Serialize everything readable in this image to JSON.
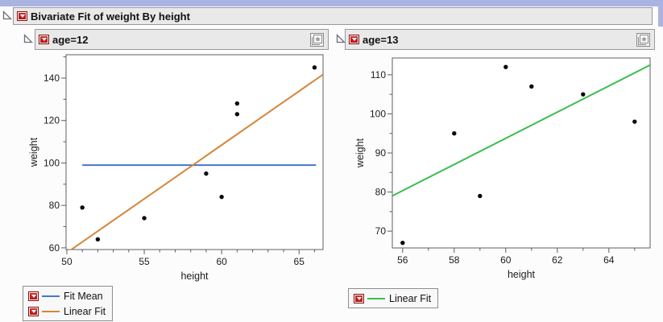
{
  "report": {
    "title": "Bivariate Fit of weight By height"
  },
  "panels": [
    {
      "title": "age=12",
      "legend": [
        {
          "label": "Fit Mean",
          "color": "#4575d0"
        },
        {
          "label": "Linear Fit",
          "color": "#d3863a"
        }
      ]
    },
    {
      "title": "age=13",
      "legend": [
        {
          "label": "Linear Fit",
          "color": "#3cbe4e"
        }
      ]
    }
  ],
  "icons": {
    "disclosure": "open-disclosure-triangle",
    "menu": "red-triangle-menu",
    "pin": "star-pin"
  },
  "colors": {
    "window_strip": "#aab4e2",
    "header_bg": "#e9e9e9",
    "header_border": "#98989e",
    "frame": "#5f5f5f",
    "point": "#0a0a0a",
    "fit_mean": "#4575d0",
    "linear_fit_12": "#d3863a",
    "linear_fit_13": "#3cbe4e"
  },
  "chart_data": [
    {
      "type": "scatter",
      "panel": "age=12",
      "xlabel": "height",
      "ylabel": "weight",
      "points": [
        [
          51,
          79
        ],
        [
          52,
          64
        ],
        [
          55,
          74
        ],
        [
          59,
          95
        ],
        [
          60,
          84
        ],
        [
          61,
          123
        ],
        [
          61,
          128
        ],
        [
          66,
          145
        ]
      ],
      "xlim": [
        49.95,
        66.55
      ],
      "ylim": [
        59.2,
        151
      ],
      "xticks": [
        50,
        55,
        60,
        65
      ],
      "yticks": [
        60,
        80,
        100,
        120,
        140
      ],
      "xminor": [
        51,
        52,
        53,
        54,
        56,
        57,
        58,
        59,
        61,
        62,
        63,
        64,
        66
      ],
      "yminor": [
        70,
        90,
        110,
        130,
        150
      ],
      "fits": [
        {
          "kind": "mean",
          "label": "Fit Mean",
          "color": "#4575d0",
          "y": 99,
          "x1": 51,
          "x2": 66.1
        },
        {
          "kind": "linear",
          "label": "Linear Fit",
          "color": "#d3863a",
          "slope": 5.075,
          "intercept": -196.04
        }
      ]
    },
    {
      "type": "scatter",
      "panel": "age=13",
      "xlabel": "height",
      "ylabel": "weight",
      "points": [
        [
          56,
          67
        ],
        [
          58,
          95
        ],
        [
          59,
          79
        ],
        [
          60,
          112
        ],
        [
          61,
          107
        ],
        [
          63,
          105
        ],
        [
          65,
          98
        ]
      ],
      "xlim": [
        55.6,
        65.6
      ],
      "ylim": [
        65.7,
        114.3
      ],
      "xticks": [
        56,
        58,
        60,
        62,
        64
      ],
      "yticks": [
        70,
        80,
        90,
        100,
        110
      ],
      "xminor": [
        57,
        59,
        61,
        63,
        65
      ],
      "yminor": [
        75,
        85,
        95,
        105
      ],
      "fits": [
        {
          "kind": "linear",
          "label": "Linear Fit",
          "color": "#3cbe4e",
          "slope": 3.348,
          "intercept": -107.13
        }
      ]
    }
  ]
}
